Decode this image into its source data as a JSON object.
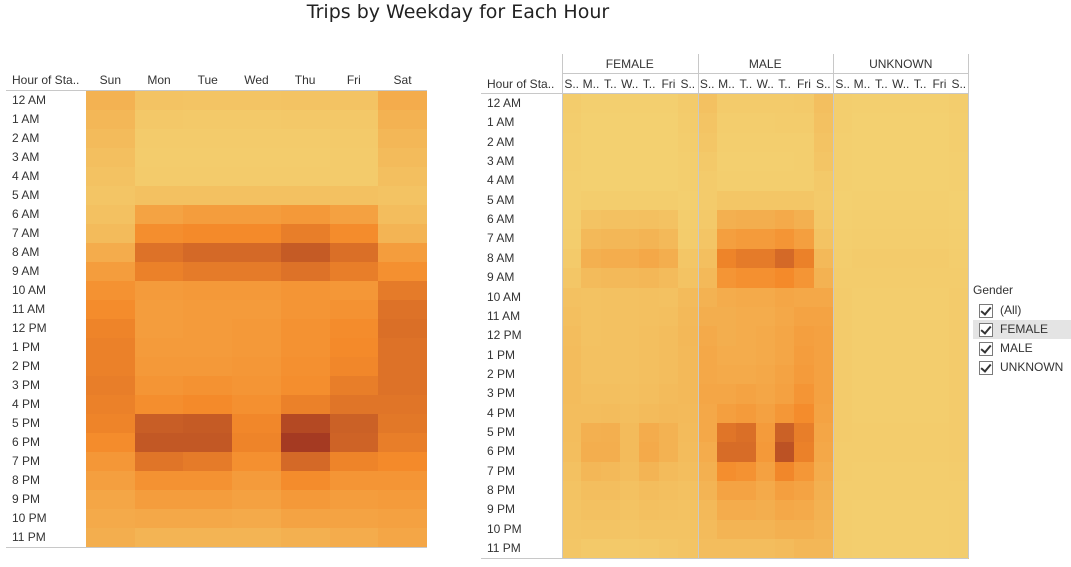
{
  "title": "Trips by Weekday for Each Hour",
  "legend": {
    "title": "Gender",
    "items": [
      {
        "label": "(All)",
        "checked": true,
        "selected": false
      },
      {
        "label": "FEMALE",
        "checked": true,
        "selected": true
      },
      {
        "label": "MALE",
        "checked": true,
        "selected": false
      },
      {
        "label": "UNKNOWN",
        "checked": true,
        "selected": false
      }
    ]
  },
  "left_panel": {
    "row_header": "Hour of Sta..",
    "column_labels": [
      "Sun",
      "Mon",
      "Tue",
      "Wed",
      "Thu",
      "Fri",
      "Sat"
    ]
  },
  "right_panel": {
    "row_header": "Hour of Sta..",
    "group_labels": [
      "FEMALE",
      "MALE",
      "UNKNOWN"
    ],
    "column_labels": [
      "S..",
      "M..",
      "T..",
      "W..",
      "T..",
      "Fri",
      "S.."
    ]
  },
  "colors": {
    "scale_low": "#f3d070",
    "scale_mid": "#f48a2a",
    "scale_high": "#a53a22"
  },
  "chart_data": [
    {
      "type": "heatmap",
      "title": "Trips by Weekday for Each Hour",
      "x": [
        "Sun",
        "Mon",
        "Tue",
        "Wed",
        "Thu",
        "Fri",
        "Sat"
      ],
      "y": [
        "12 AM",
        "1 AM",
        "2 AM",
        "3 AM",
        "4 AM",
        "5 AM",
        "6 AM",
        "7 AM",
        "8 AM",
        "9 AM",
        "10 AM",
        "11 AM",
        "12 PM",
        "1 PM",
        "2 PM",
        "3 PM",
        "4 PM",
        "5 PM",
        "6 PM",
        "7 PM",
        "8 PM",
        "9 PM",
        "10 PM",
        "11 PM"
      ],
      "values": [
        [
          28,
          12,
          11,
          11,
          12,
          12,
          34
        ],
        [
          24,
          8,
          7,
          7,
          8,
          8,
          28
        ],
        [
          20,
          5,
          5,
          5,
          5,
          6,
          24
        ],
        [
          16,
          4,
          4,
          4,
          4,
          5,
          20
        ],
        [
          13,
          5,
          5,
          5,
          5,
          5,
          16
        ],
        [
          10,
          14,
          14,
          14,
          14,
          14,
          12
        ],
        [
          14,
          42,
          48,
          48,
          52,
          44,
          18
        ],
        [
          20,
          62,
          66,
          66,
          74,
          64,
          26
        ],
        [
          34,
          82,
          88,
          88,
          98,
          84,
          48
        ],
        [
          48,
          72,
          76,
          76,
          82,
          74,
          60
        ],
        [
          58,
          50,
          52,
          52,
          56,
          54,
          76
        ],
        [
          64,
          48,
          50,
          50,
          56,
          58,
          82
        ],
        [
          70,
          48,
          50,
          52,
          58,
          64,
          84
        ],
        [
          72,
          50,
          50,
          52,
          58,
          66,
          82
        ],
        [
          72,
          52,
          52,
          54,
          60,
          68,
          82
        ],
        [
          74,
          56,
          58,
          56,
          62,
          74,
          82
        ],
        [
          72,
          62,
          66,
          60,
          72,
          80,
          80
        ],
        [
          70,
          96,
          98,
          68,
          110,
          94,
          78
        ],
        [
          64,
          100,
          100,
          70,
          120,
          92,
          74
        ],
        [
          54,
          80,
          76,
          60,
          88,
          70,
          66
        ],
        [
          46,
          58,
          58,
          50,
          64,
          56,
          56
        ],
        [
          40,
          48,
          48,
          44,
          52,
          48,
          50
        ],
        [
          36,
          38,
          38,
          36,
          42,
          42,
          44
        ],
        [
          32,
          26,
          26,
          26,
          30,
          34,
          40
        ]
      ]
    },
    {
      "type": "heatmap",
      "x": [
        "FEMALE S..",
        "FEMALE M..",
        "FEMALE T..",
        "FEMALE W..",
        "FEMALE T..",
        "FEMALE Fri",
        "FEMALE S..",
        "MALE S..",
        "MALE M..",
        "MALE T..",
        "MALE W..",
        "MALE T..",
        "MALE Fri",
        "MALE S..",
        "UNKNOWN S..",
        "UNKNOWN M..",
        "UNKNOWN T..",
        "UNKNOWN W..",
        "UNKNOWN T..",
        "UNKNOWN Fri",
        "UNKNOWN S.."
      ],
      "y": [
        "12 AM",
        "1 AM",
        "2 AM",
        "3 AM",
        "4 AM",
        "5 AM",
        "6 AM",
        "7 AM",
        "8 AM",
        "9 AM",
        "10 AM",
        "11 AM",
        "12 PM",
        "1 PM",
        "2 PM",
        "3 PM",
        "4 PM",
        "5 PM",
        "6 PM",
        "7 PM",
        "8 PM",
        "9 PM",
        "10 PM",
        "11 PM"
      ],
      "values": [
        [
          4,
          1,
          1,
          1,
          1,
          1,
          5,
          14,
          5,
          5,
          5,
          5,
          6,
          16,
          2,
          1,
          1,
          1,
          1,
          1,
          3
        ],
        [
          3,
          0,
          0,
          0,
          0,
          0,
          4,
          11,
          3,
          3,
          3,
          4,
          4,
          14,
          2,
          0,
          0,
          0,
          0,
          0,
          2
        ],
        [
          2,
          0,
          0,
          0,
          0,
          0,
          3,
          9,
          2,
          2,
          2,
          2,
          2,
          12,
          1,
          0,
          0,
          0,
          0,
          0,
          2
        ],
        [
          2,
          0,
          0,
          0,
          0,
          0,
          2,
          7,
          1,
          1,
          1,
          1,
          2,
          10,
          1,
          0,
          0,
          0,
          0,
          0,
          1
        ],
        [
          1,
          0,
          0,
          0,
          0,
          0,
          2,
          5,
          2,
          2,
          2,
          2,
          2,
          7,
          1,
          0,
          0,
          0,
          0,
          0,
          1
        ],
        [
          1,
          3,
          3,
          3,
          3,
          3,
          1,
          5,
          9,
          9,
          9,
          9,
          9,
          6,
          0,
          1,
          1,
          1,
          1,
          1,
          0
        ],
        [
          2,
          12,
          14,
          14,
          15,
          13,
          3,
          7,
          30,
          32,
          32,
          36,
          30,
          8,
          1,
          2,
          2,
          2,
          2,
          2,
          1
        ],
        [
          3,
          22,
          24,
          24,
          26,
          22,
          4,
          10,
          46,
          50,
          50,
          56,
          46,
          12,
          2,
          3,
          3,
          3,
          3,
          3,
          2
        ],
        [
          6,
          30,
          33,
          33,
          38,
          32,
          9,
          16,
          70,
          76,
          76,
          88,
          72,
          22,
          3,
          5,
          5,
          5,
          5,
          5,
          3
        ],
        [
          9,
          20,
          22,
          22,
          24,
          20,
          12,
          22,
          56,
          60,
          60,
          66,
          56,
          28,
          4,
          4,
          4,
          4,
          4,
          4,
          4
        ],
        [
          14,
          13,
          14,
          14,
          15,
          14,
          20,
          28,
          34,
          36,
          36,
          40,
          38,
          38,
          5,
          3,
          3,
          3,
          3,
          3,
          5
        ],
        [
          16,
          13,
          14,
          14,
          15,
          16,
          22,
          32,
          32,
          34,
          34,
          38,
          42,
          42,
          5,
          3,
          3,
          3,
          3,
          3,
          5
        ],
        [
          18,
          13,
          14,
          14,
          16,
          18,
          23,
          36,
          32,
          34,
          36,
          40,
          46,
          44,
          5,
          3,
          3,
          3,
          3,
          3,
          5
        ],
        [
          19,
          14,
          14,
          14,
          16,
          18,
          22,
          38,
          34,
          34,
          36,
          40,
          48,
          44,
          5,
          3,
          3,
          3,
          3,
          3,
          5
        ],
        [
          19,
          14,
          14,
          14,
          16,
          18,
          22,
          38,
          36,
          36,
          38,
          42,
          50,
          44,
          5,
          3,
          3,
          3,
          3,
          3,
          5
        ],
        [
          19,
          16,
          16,
          15,
          17,
          20,
          22,
          40,
          40,
          42,
          40,
          44,
          56,
          44,
          5,
          3,
          3,
          3,
          3,
          3,
          5
        ],
        [
          18,
          18,
          19,
          17,
          20,
          22,
          21,
          38,
          46,
          50,
          44,
          54,
          64,
          42,
          5,
          3,
          3,
          3,
          3,
          3,
          5
        ],
        [
          18,
          30,
          31,
          20,
          34,
          28,
          20,
          38,
          80,
          84,
          50,
          94,
          74,
          40,
          5,
          4,
          4,
          4,
          4,
          4,
          5
        ],
        [
          17,
          32,
          32,
          20,
          36,
          28,
          19,
          34,
          86,
          86,
          52,
          104,
          72,
          38,
          4,
          4,
          4,
          4,
          4,
          4,
          5
        ],
        [
          14,
          24,
          22,
          18,
          26,
          20,
          17,
          30,
          62,
          58,
          44,
          68,
          54,
          34,
          4,
          3,
          3,
          3,
          3,
          3,
          4
        ],
        [
          12,
          17,
          17,
          14,
          18,
          16,
          14,
          26,
          42,
          42,
          36,
          46,
          42,
          30,
          3,
          3,
          3,
          3,
          3,
          3,
          3
        ],
        [
          11,
          14,
          14,
          12,
          15,
          14,
          13,
          22,
          34,
          34,
          32,
          38,
          36,
          28,
          3,
          2,
          2,
          2,
          2,
          2,
          3
        ],
        [
          10,
          11,
          11,
          10,
          12,
          12,
          12,
          20,
          26,
          26,
          26,
          30,
          30,
          26,
          3,
          2,
          2,
          2,
          2,
          2,
          3
        ],
        [
          9,
          7,
          7,
          7,
          8,
          9,
          11,
          18,
          18,
          18,
          18,
          20,
          24,
          24,
          3,
          2,
          2,
          2,
          2,
          2,
          3
        ]
      ]
    }
  ]
}
